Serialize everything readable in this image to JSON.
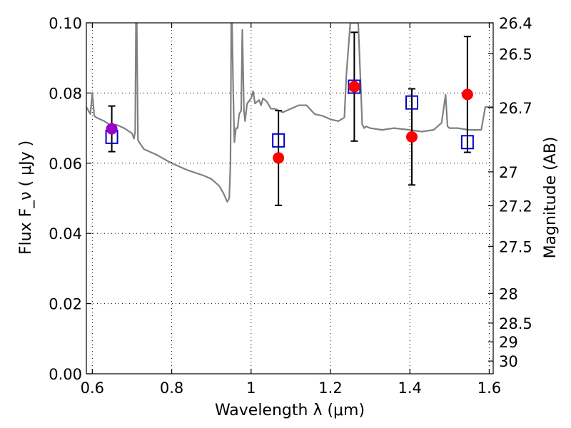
{
  "chart_data": {
    "type": "scatter",
    "title": "",
    "xlabel": "Wavelength  λ (μm)",
    "ylabel": "Flux  F_ν  ( μJy )",
    "y2label": "Magnitude (AB)",
    "xlim": [
      0.585,
      1.61
    ],
    "ylim": [
      0.0,
      0.1
    ],
    "grid": true,
    "x_ticks": [
      0.6,
      0.8,
      1.0,
      1.2,
      1.4,
      1.6
    ],
    "x_tick_labels": [
      "0.6",
      "0.8",
      "1",
      "1.2",
      "1.4",
      "1.6"
    ],
    "y_ticks": [
      0.0,
      0.02,
      0.04,
      0.06,
      0.08,
      0.1
    ],
    "y_tick_labels": [
      "0.00",
      "0.02",
      "0.04",
      "0.06",
      "0.08",
      "0.10"
    ],
    "y2_ticks": [
      26.4,
      26.5,
      26.7,
      27.0,
      27.2,
      27.5,
      28.0,
      28.5,
      29.0,
      30.0
    ],
    "y2_tick_labels": [
      "26.4",
      "26.5",
      "26.7",
      "27",
      "27.2",
      "27.5",
      "28",
      "28.5",
      "29",
      "30"
    ],
    "series": [
      {
        "marker": "line",
        "color": "#808080",
        "x": [
          0.585,
          0.595,
          0.6,
          0.605,
          0.61,
          0.63,
          0.65,
          0.66,
          0.68,
          0.7,
          0.705,
          0.708,
          0.71,
          0.712,
          0.715,
          0.73,
          0.76,
          0.8,
          0.84,
          0.88,
          0.9,
          0.92,
          0.93,
          0.94,
          0.945,
          0.948,
          0.95,
          0.952,
          0.955,
          0.958,
          0.962,
          0.966,
          0.97,
          0.975,
          0.978,
          0.982,
          0.985,
          0.99,
          1.0,
          1.005,
          1.01,
          1.02,
          1.025,
          1.03,
          1.04,
          1.05,
          1.06,
          1.08,
          1.1,
          1.12,
          1.14,
          1.16,
          1.18,
          1.2,
          1.22,
          1.235,
          1.24,
          1.25,
          1.27,
          1.28,
          1.285,
          1.29,
          1.3,
          1.33,
          1.36,
          1.4,
          1.43,
          1.46,
          1.48,
          1.49,
          1.495,
          1.5,
          1.52,
          1.55,
          1.58,
          1.59,
          1.6,
          1.61
        ],
        "y": [
          0.076,
          0.074,
          0.08,
          0.0735,
          0.073,
          0.072,
          0.0705,
          0.071,
          0.07,
          0.0685,
          0.067,
          0.069,
          0.1,
          0.1,
          0.0665,
          0.064,
          0.0625,
          0.06,
          0.058,
          0.0565,
          0.0555,
          0.0535,
          0.0515,
          0.049,
          0.05,
          0.06,
          0.1,
          0.1,
          0.08,
          0.066,
          0.07,
          0.07,
          0.074,
          0.075,
          0.098,
          0.075,
          0.072,
          0.077,
          0.0785,
          0.0805,
          0.077,
          0.078,
          0.0765,
          0.0785,
          0.0775,
          0.0755,
          0.0755,
          0.0745,
          0.0755,
          0.0765,
          0.0765,
          0.074,
          0.0735,
          0.0725,
          0.072,
          0.073,
          0.085,
          0.1,
          0.1,
          0.071,
          0.07,
          0.0705,
          0.07,
          0.0695,
          0.07,
          0.0695,
          0.069,
          0.0695,
          0.0715,
          0.0795,
          0.0705,
          0.07,
          0.07,
          0.0695,
          0.0695,
          0.076,
          0.076,
          0.076
        ]
      },
      {
        "marker": "open-square",
        "color": "#0000cc",
        "x": [
          0.649,
          1.069,
          1.26,
          1.405,
          1.545
        ],
        "y": [
          0.0675,
          0.0665,
          0.0818,
          0.0773,
          0.066
        ]
      },
      {
        "marker": "filled-circle",
        "color": "#ff0000",
        "x": [
          1.069,
          1.26,
          1.405,
          1.545
        ],
        "y": [
          0.0615,
          0.0818,
          0.0675,
          0.0796
        ],
        "err": [
          0.0135,
          0.0155,
          0.0137,
          0.0165
        ]
      },
      {
        "marker": "filled-circle",
        "color": "#9900cc",
        "x": [
          0.649
        ],
        "y": [
          0.0698
        ],
        "err": [
          0.0065
        ]
      }
    ]
  }
}
